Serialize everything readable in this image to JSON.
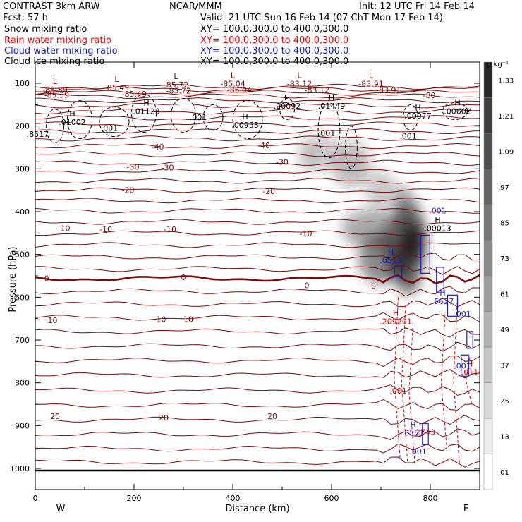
{
  "header": {
    "title": "CONTRAST  3km ARW",
    "center": "NCAR/MMM",
    "init": "Init: 12 UTC Fri 14 Feb 14",
    "fcst": "Fcst:    57 h",
    "valid": "Valid: 21 UTC Sun 16 Feb 14 (07 ChT Mon 17 Feb 14)"
  },
  "legend": [
    {
      "label": "Snow mixing ratio",
      "xy": "XY= 100.0,300.0 to 400.0,300.0",
      "color": "#000000"
    },
    {
      "label": "Rain water mixing ratio",
      "xy": "XY= 100.0,300.0 to 400.0,300.0",
      "color": "#e00000"
    },
    {
      "label": "Cloud water mixing ratio",
      "xy": "XY= 100.0,300.0 to 400.0,300.0",
      "color": "#1a1ad0"
    },
    {
      "label": "Cloud ice mixing ratio",
      "xy": "XY= 100.0,300.0 to 400.0,300.0",
      "color": "#000000"
    }
  ],
  "colors": {
    "temperature": "#7b0a0a",
    "rain": "#e00000",
    "cloud_water": "#1a1ad0",
    "snow": "#000000",
    "ground": "#000000"
  },
  "chart_data": {
    "type": "cross-section",
    "xlabel": "Distance (km)",
    "ylabel": "Pressure (hPa)",
    "x_range": [
      0,
      900
    ],
    "y_range": [
      1025,
      75
    ],
    "x_ticks": [
      "0",
      "200",
      "400",
      "600",
      "800"
    ],
    "x_tick_values": [
      0,
      200,
      400,
      600,
      800
    ],
    "y_ticks": [
      "100",
      "200",
      "300",
      "400",
      "500",
      "600",
      "700",
      "800",
      "900",
      "1000"
    ],
    "y_tick_values": [
      100,
      200,
      300,
      400,
      500,
      600,
      700,
      800,
      900,
      1000
    ],
    "endpoint_left": "W",
    "endpoint_right": "E",
    "colorbar": {
      "unit": "g kg⁻¹",
      "ticks": [
        ".01",
        ".13",
        ".25",
        ".37",
        ".49",
        ".61",
        ".73",
        ".85",
        ".97",
        "1.09",
        "1.21",
        "1.33"
      ]
    },
    "temperature_contours": {
      "labels": [
        {
          "text": "-85.39",
          "x": 18,
          "p": 127
        },
        {
          "text": "-85.49",
          "x": 175,
          "p": 125
        },
        {
          "text": "-85.72",
          "x": 265,
          "p": 117
        },
        {
          "text": "-85.04",
          "x": 388,
          "p": 116
        },
        {
          "text": "-83.12",
          "x": 545,
          "p": 116
        },
        {
          "text": "-83.91",
          "x": 690,
          "p": 116
        },
        {
          "text": "-80",
          "x": 785,
          "p": 128
        },
        {
          "text": "-40",
          "x": -5,
          "p": 247
        },
        {
          "text": "-40",
          "x": 235,
          "p": 248
        },
        {
          "text": "-40",
          "x": 450,
          "p": 245
        },
        {
          "text": "-30",
          "x": 185,
          "p": 295
        },
        {
          "text": "-30",
          "x": 255,
          "p": 297
        },
        {
          "text": "-30",
          "x": 487,
          "p": 284
        },
        {
          "text": "-20",
          "x": 175,
          "p": 350
        },
        {
          "text": "-20",
          "x": 460,
          "p": 352
        },
        {
          "text": "-10",
          "x": 45,
          "p": 439
        },
        {
          "text": "-10",
          "x": 130,
          "p": 441
        },
        {
          "text": "-10",
          "x": 260,
          "p": 441
        },
        {
          "text": "-10",
          "x": 535,
          "p": 451
        },
        {
          "text": "0",
          "x": 18,
          "p": 556
        },
        {
          "text": "0",
          "x": 295,
          "p": 553
        },
        {
          "text": "0",
          "x": 545,
          "p": 572
        },
        {
          "text": "0",
          "x": 680,
          "p": 574
        },
        {
          "text": "10",
          "x": 25,
          "p": 654
        },
        {
          "text": "10",
          "x": 245,
          "p": 651
        },
        {
          "text": "10",
          "x": 300,
          "p": 651
        },
        {
          "text": "20",
          "x": 30,
          "p": 878
        },
        {
          "text": "20",
          "x": 250,
          "p": 881
        },
        {
          "text": "20",
          "x": 470,
          "p": 878
        }
      ]
    },
    "extrema_labels": [
      {
        "kind": "L",
        "value": "-85.39",
        "x": 40,
        "p": 120,
        "color": "#7b0a0a"
      },
      {
        "kind": "L",
        "value": "-85.49",
        "x": 165,
        "p": 115,
        "color": "#7b0a0a"
      },
      {
        "kind": "L",
        "value": "-85.72",
        "x": 285,
        "p": 108,
        "color": "#7b0a0a"
      },
      {
        "kind": "L",
        "value": "-85.04",
        "x": 400,
        "p": 106,
        "color": "#7b0a0a"
      },
      {
        "kind": "L",
        "value": "-83.12",
        "x": 535,
        "p": 106,
        "color": "#7b0a0a"
      },
      {
        "kind": "L",
        "value": "-83.91",
        "x": 680,
        "p": 106,
        "color": "#7b0a0a"
      },
      {
        "kind": "H",
        "value": ".01002",
        "x": 75,
        "p": 196,
        "color": "#000000"
      },
      {
        "kind": "H",
        "value": ".01123",
        "x": 225,
        "p": 170,
        "color": "#000000"
      },
      {
        "kind": "H",
        "value": ".00092",
        "x": 510,
        "p": 158,
        "color": "#000000"
      },
      {
        "kind": "H",
        "value": ".01449",
        "x": 600,
        "p": 158,
        "color": "#000000"
      },
      {
        "kind": "H",
        "value": ".00953",
        "x": 425,
        "p": 202,
        "color": "#000000"
      },
      {
        "kind": "H",
        "value": ".00077",
        "x": 775,
        "p": 181,
        "color": "#000000"
      },
      {
        "kind": "H",
        "value": ".00602",
        "x": 855,
        "p": 170,
        "color": "#000000"
      },
      {
        "kind": "H",
        "value": ".00013",
        "x": 815,
        "p": 444,
        "color": "#000000"
      },
      {
        "kind": "H",
        "value": ".0513",
        "x": 720,
        "p": 519,
        "color": "#1a1ad0"
      },
      {
        "kind": "H",
        "value": ".5627",
        "x": 825,
        "p": 614,
        "color": "#1a1ad0"
      },
      {
        "kind": "H",
        "value": ".209201",
        "x": 730,
        "p": 661,
        "color": "#e00000"
      },
      {
        "kind": "H",
        "value": ".011",
        "x": 880,
        "p": 780,
        "color": "#e00000"
      },
      {
        "kind": "H",
        "value": ".0551",
        "x": 765,
        "p": 922,
        "color": "#1a1ad0"
      }
    ],
    "contour_value_labels": [
      {
        "text": ".001",
        "x": 150,
        "p": 211,
        "color": "#000000"
      },
      {
        "text": ".001",
        "x": 330,
        "p": 186,
        "color": "#000000"
      },
      {
        "text": ".001",
        "x": 590,
        "p": 223,
        "color": "#000000"
      },
      {
        "text": ".001",
        "x": 755,
        "p": 229,
        "color": "#000000"
      },
      {
        "text": ".8517",
        "x": 5,
        "p": 225,
        "color": "#000000"
      },
      {
        "text": ".001",
        "x": 815,
        "p": 404,
        "color": "#1a1ad0"
      },
      {
        "text": ".001",
        "x": 865,
        "p": 646,
        "color": "#1a1ad0"
      },
      {
        "text": ".001",
        "x": 865,
        "p": 767,
        "color": "#1a1ad0"
      },
      {
        "text": ".001",
        "x": 735,
        "p": 825,
        "color": "#e00000"
      },
      {
        "text": "2743",
        "x": 790,
        "p": 922,
        "color": "#e00000"
      },
      {
        "text": ".001",
        "x": 775,
        "p": 967,
        "color": "#1a1ad0"
      }
    ]
  }
}
